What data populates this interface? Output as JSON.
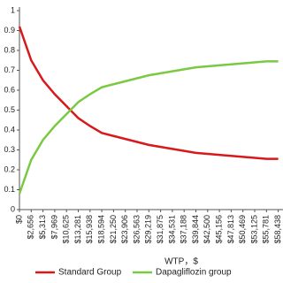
{
  "chart_data": {
    "type": "line",
    "x_label": "WTP，$",
    "categories": [
      "$0",
      "$2,656",
      "$5,313",
      "$7,969",
      "$10,625",
      "$13,281",
      "$15,938",
      "$18,594",
      "$21,250",
      "$23,906",
      "$26,563",
      "$29,219",
      "$31,875",
      "$34,531",
      "$37,188",
      "$39,844",
      "$42,500",
      "$45,156",
      "$47,813",
      "$50,469",
      "$53,125",
      "$55,781",
      "$58,438"
    ],
    "series": [
      {
        "name": "Standard Group",
        "color": "#d7191c",
        "values": [
          0.92,
          0.75,
          0.65,
          0.58,
          0.52,
          0.46,
          0.42,
          0.385,
          0.37,
          0.355,
          0.34,
          0.325,
          0.315,
          0.305,
          0.295,
          0.285,
          0.28,
          0.275,
          0.27,
          0.265,
          0.26,
          0.255,
          0.255
        ]
      },
      {
        "name": "Dapagliflozin group",
        "color": "#7ac943",
        "values": [
          0.08,
          0.25,
          0.35,
          0.42,
          0.48,
          0.54,
          0.58,
          0.615,
          0.63,
          0.645,
          0.66,
          0.675,
          0.685,
          0.695,
          0.705,
          0.715,
          0.72,
          0.725,
          0.73,
          0.735,
          0.74,
          0.745,
          0.745
        ]
      }
    ],
    "ylim": [
      0,
      1
    ],
    "yticks": [
      0,
      0.1,
      0.2,
      0.3,
      0.4,
      0.5,
      0.6,
      0.7,
      0.8,
      0.9,
      1
    ],
    "grid": false,
    "legend": "bottom"
  }
}
